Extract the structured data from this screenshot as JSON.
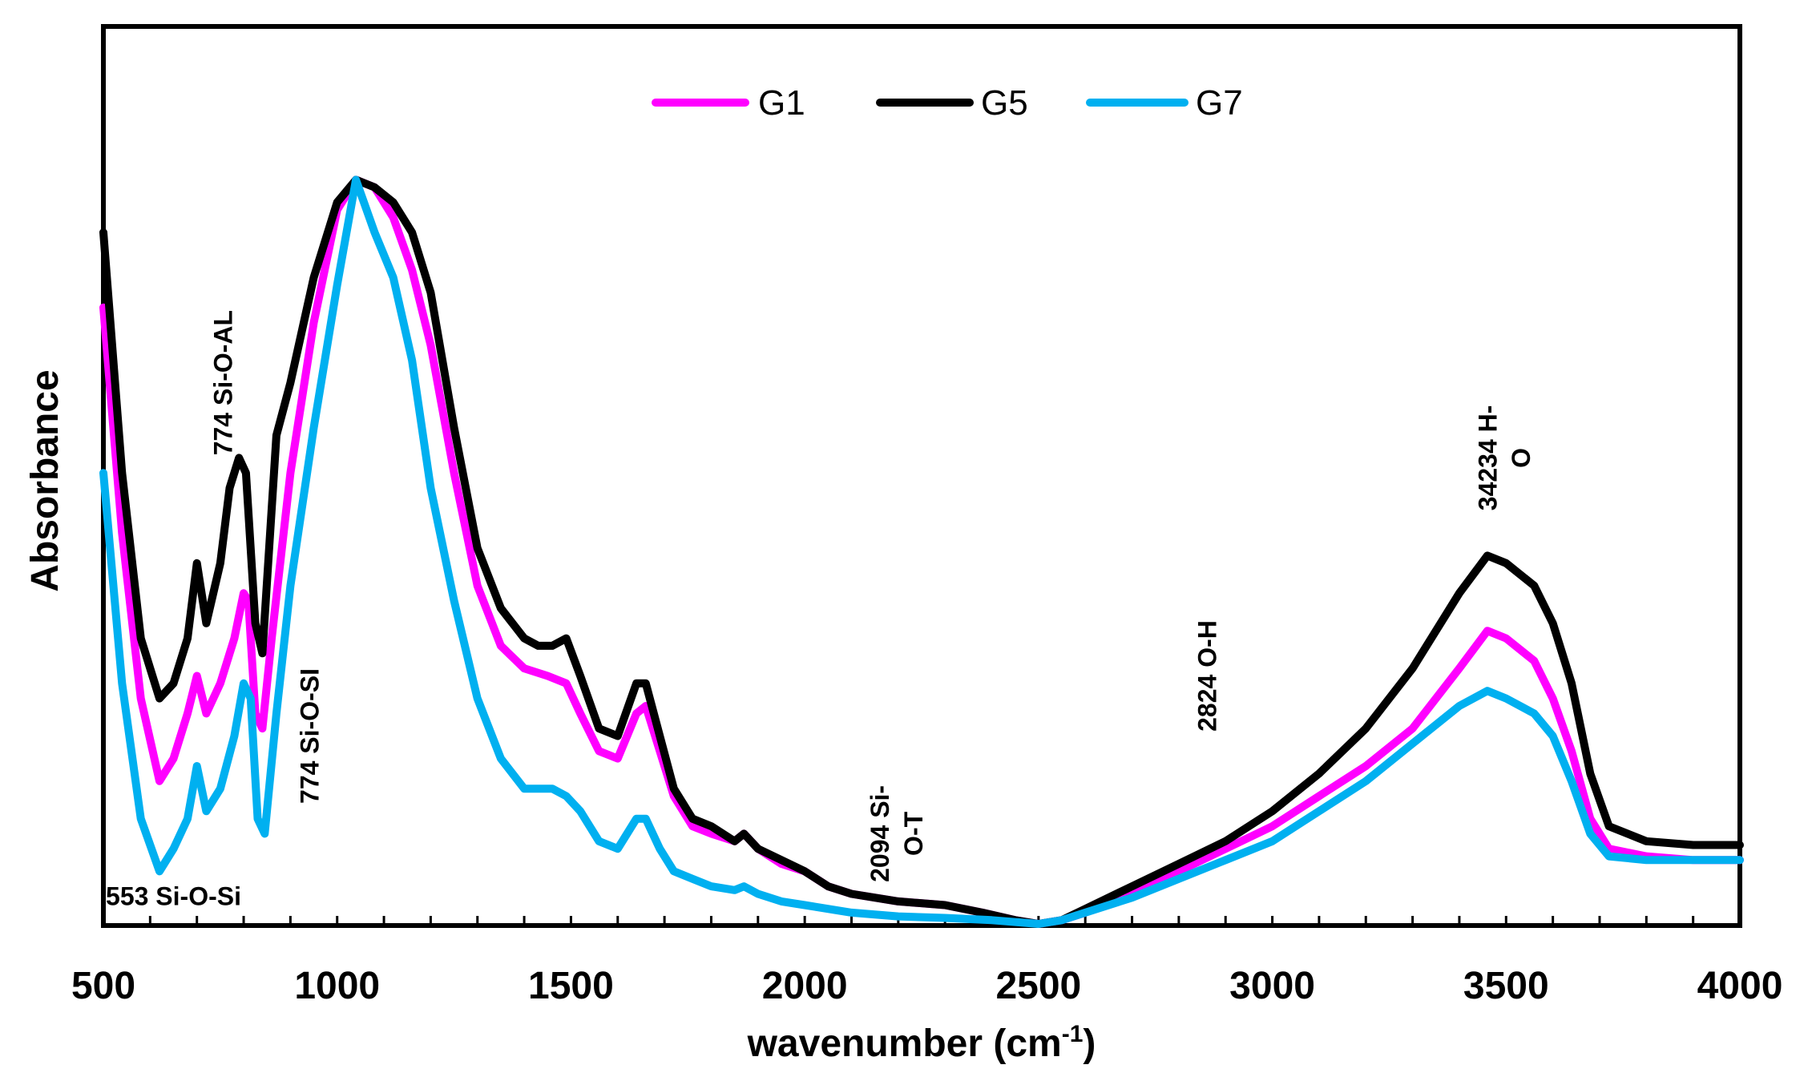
{
  "chart_data": {
    "type": "line",
    "title": "",
    "xlabel": "wavenumber (cm",
    "xlabel_sup": "-1",
    "xlabel_end": ")",
    "ylabel": "Absorbance",
    "xlim": [
      500,
      4000
    ],
    "ylim": [
      0,
      100
    ],
    "x_ticks": [
      "500",
      "1000",
      "1500",
      "2000",
      "2500",
      "3000",
      "3500",
      "4000"
    ],
    "legend_position": "top-center",
    "series": [
      {
        "name": "G1",
        "color": "#ff00ff",
        "points": [
          [
            500,
            82
          ],
          [
            540,
            52
          ],
          [
            580,
            30
          ],
          [
            620,
            19
          ],
          [
            650,
            22
          ],
          [
            680,
            28
          ],
          [
            700,
            33
          ],
          [
            720,
            28
          ],
          [
            750,
            32
          ],
          [
            780,
            38
          ],
          [
            800,
            44
          ],
          [
            810,
            43
          ],
          [
            825,
            28
          ],
          [
            840,
            26
          ],
          [
            860,
            38
          ],
          [
            900,
            60
          ],
          [
            950,
            80
          ],
          [
            1000,
            95
          ],
          [
            1040,
            99
          ],
          [
            1080,
            98
          ],
          [
            1120,
            94
          ],
          [
            1160,
            87
          ],
          [
            1200,
            77
          ],
          [
            1250,
            60
          ],
          [
            1300,
            45
          ],
          [
            1350,
            37
          ],
          [
            1400,
            34
          ],
          [
            1450,
            33
          ],
          [
            1490,
            32
          ],
          [
            1520,
            28
          ],
          [
            1560,
            23
          ],
          [
            1600,
            22
          ],
          [
            1640,
            28
          ],
          [
            1660,
            29
          ],
          [
            1690,
            23
          ],
          [
            1720,
            17
          ],
          [
            1760,
            13
          ],
          [
            1800,
            12
          ],
          [
            1850,
            11
          ],
          [
            1870,
            12
          ],
          [
            1900,
            10
          ],
          [
            1950,
            8
          ],
          [
            2000,
            7
          ],
          [
            2050,
            5
          ],
          [
            2100,
            4
          ],
          [
            2200,
            3
          ],
          [
            2300,
            2.5
          ],
          [
            2380,
            1.5
          ],
          [
            2450,
            0.5
          ],
          [
            2500,
            0
          ],
          [
            2550,
            0.5
          ],
          [
            2600,
            1.5
          ],
          [
            2700,
            4
          ],
          [
            2800,
            7
          ],
          [
            2900,
            10
          ],
          [
            3000,
            13
          ],
          [
            3100,
            17
          ],
          [
            3200,
            21
          ],
          [
            3300,
            26
          ],
          [
            3400,
            34
          ],
          [
            3460,
            39
          ],
          [
            3500,
            38
          ],
          [
            3560,
            35
          ],
          [
            3600,
            30
          ],
          [
            3640,
            23
          ],
          [
            3680,
            14
          ],
          [
            3720,
            10
          ],
          [
            3800,
            9
          ],
          [
            3900,
            8.5
          ],
          [
            4000,
            8.5
          ]
        ]
      },
      {
        "name": "G5",
        "color": "#000000",
        "points": [
          [
            500,
            92
          ],
          [
            540,
            60
          ],
          [
            580,
            38
          ],
          [
            620,
            30
          ],
          [
            650,
            32
          ],
          [
            680,
            38
          ],
          [
            700,
            48
          ],
          [
            720,
            40
          ],
          [
            750,
            48
          ],
          [
            770,
            58
          ],
          [
            790,
            62
          ],
          [
            805,
            60
          ],
          [
            825,
            40
          ],
          [
            840,
            36
          ],
          [
            870,
            65
          ],
          [
            900,
            72
          ],
          [
            950,
            86
          ],
          [
            1000,
            96
          ],
          [
            1040,
            99
          ],
          [
            1080,
            98
          ],
          [
            1120,
            96
          ],
          [
            1160,
            92
          ],
          [
            1200,
            84
          ],
          [
            1250,
            66
          ],
          [
            1300,
            50
          ],
          [
            1350,
            42
          ],
          [
            1400,
            38
          ],
          [
            1430,
            37
          ],
          [
            1460,
            37
          ],
          [
            1490,
            38
          ],
          [
            1520,
            33
          ],
          [
            1560,
            26
          ],
          [
            1600,
            25
          ],
          [
            1640,
            32
          ],
          [
            1660,
            32
          ],
          [
            1690,
            25
          ],
          [
            1720,
            18
          ],
          [
            1760,
            14
          ],
          [
            1800,
            13
          ],
          [
            1850,
            11
          ],
          [
            1870,
            12
          ],
          [
            1900,
            10
          ],
          [
            1950,
            8.5
          ],
          [
            2000,
            7
          ],
          [
            2050,
            5
          ],
          [
            2100,
            4
          ],
          [
            2200,
            3
          ],
          [
            2300,
            2.5
          ],
          [
            2380,
            1.5
          ],
          [
            2450,
            0.5
          ],
          [
            2500,
            0
          ],
          [
            2550,
            0.5
          ],
          [
            2600,
            2
          ],
          [
            2700,
            5
          ],
          [
            2800,
            8
          ],
          [
            2900,
            11
          ],
          [
            3000,
            15
          ],
          [
            3100,
            20
          ],
          [
            3200,
            26
          ],
          [
            3300,
            34
          ],
          [
            3400,
            44
          ],
          [
            3460,
            49
          ],
          [
            3500,
            48
          ],
          [
            3560,
            45
          ],
          [
            3600,
            40
          ],
          [
            3640,
            32
          ],
          [
            3680,
            20
          ],
          [
            3720,
            13
          ],
          [
            3800,
            11
          ],
          [
            3900,
            10.5
          ],
          [
            4000,
            10.5
          ]
        ]
      },
      {
        "name": "G7",
        "color": "#00b0f0",
        "points": [
          [
            500,
            60
          ],
          [
            540,
            32
          ],
          [
            580,
            14
          ],
          [
            620,
            7
          ],
          [
            650,
            10
          ],
          [
            680,
            14
          ],
          [
            700,
            21
          ],
          [
            720,
            15
          ],
          [
            750,
            18
          ],
          [
            780,
            25
          ],
          [
            800,
            32
          ],
          [
            815,
            30
          ],
          [
            830,
            14
          ],
          [
            845,
            12
          ],
          [
            870,
            28
          ],
          [
            900,
            45
          ],
          [
            950,
            66
          ],
          [
            1000,
            85
          ],
          [
            1040,
            99
          ],
          [
            1080,
            92
          ],
          [
            1120,
            86
          ],
          [
            1160,
            75
          ],
          [
            1200,
            58
          ],
          [
            1250,
            43
          ],
          [
            1300,
            30
          ],
          [
            1350,
            22
          ],
          [
            1400,
            18
          ],
          [
            1430,
            18
          ],
          [
            1460,
            18
          ],
          [
            1490,
            17
          ],
          [
            1520,
            15
          ],
          [
            1560,
            11
          ],
          [
            1600,
            10
          ],
          [
            1640,
            14
          ],
          [
            1660,
            14
          ],
          [
            1690,
            10
          ],
          [
            1720,
            7
          ],
          [
            1760,
            6
          ],
          [
            1800,
            5
          ],
          [
            1850,
            4.5
          ],
          [
            1870,
            5
          ],
          [
            1900,
            4
          ],
          [
            1950,
            3
          ],
          [
            2000,
            2.5
          ],
          [
            2100,
            1.5
          ],
          [
            2200,
            1
          ],
          [
            2300,
            0.8
          ],
          [
            2400,
            0.5
          ],
          [
            2500,
            0
          ],
          [
            2550,
            0.5
          ],
          [
            2600,
            1.5
          ],
          [
            2700,
            3.5
          ],
          [
            2800,
            6
          ],
          [
            2900,
            8.5
          ],
          [
            3000,
            11
          ],
          [
            3100,
            15
          ],
          [
            3200,
            19
          ],
          [
            3300,
            24
          ],
          [
            3400,
            29
          ],
          [
            3460,
            31
          ],
          [
            3500,
            30
          ],
          [
            3560,
            28
          ],
          [
            3600,
            25
          ],
          [
            3640,
            19
          ],
          [
            3680,
            12
          ],
          [
            3720,
            9
          ],
          [
            3800,
            8.5
          ],
          [
            3900,
            8.5
          ],
          [
            4000,
            8.5
          ]
        ]
      }
    ],
    "annotations": [
      {
        "lines": [
          "553 Si-O-Si"
        ],
        "x": 650,
        "y": 2.5,
        "rotate": 0
      },
      {
        "lines": [
          "774 Si-O-AL"
        ],
        "x": 775,
        "y": 72,
        "rotate": -90
      },
      {
        "lines": [
          "774 Si-O-SI"
        ],
        "x": 960,
        "y": 25,
        "rotate": -90
      },
      {
        "lines": [
          "2094 Si-",
          "O-T"
        ],
        "x": 2180,
        "y": 12,
        "rotate": -90
      },
      {
        "lines": [
          "2824 O-H"
        ],
        "x": 2880,
        "y": 33,
        "rotate": -90
      },
      {
        "lines": [
          "34234 H-",
          "O"
        ],
        "x": 3480,
        "y": 62,
        "rotate": -90
      }
    ]
  }
}
